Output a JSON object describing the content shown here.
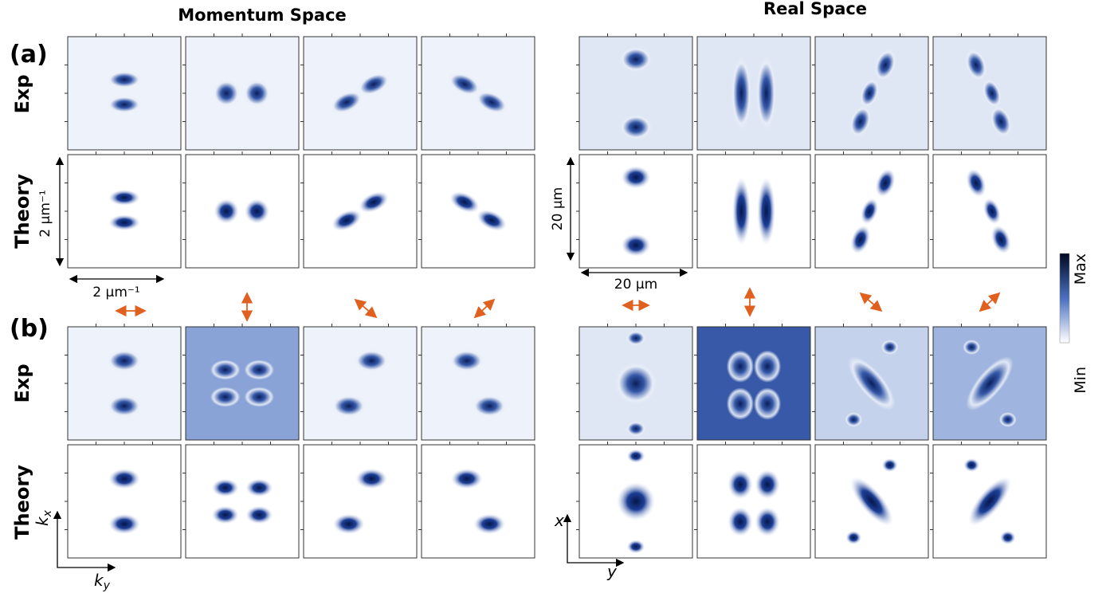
{
  "headers": {
    "left": "Momentum Space",
    "right": "Real Space"
  },
  "panels": {
    "a": "(a)",
    "b": "(b)"
  },
  "rows": [
    "Exp",
    "Theory",
    "Exp",
    "Theory"
  ],
  "scale": {
    "momentum_h": "2 μm⁻¹",
    "momentum_v": "2 μm⁻¹",
    "real_h": "20 μm",
    "real_v": "20 μm"
  },
  "colorbar": {
    "max": "Max",
    "min": "Min"
  },
  "axes": {
    "momentum_x": [
      "k",
      "x"
    ],
    "momentum_y": [
      "k",
      "y"
    ],
    "real_x": "x",
    "real_y": "y"
  }
}
